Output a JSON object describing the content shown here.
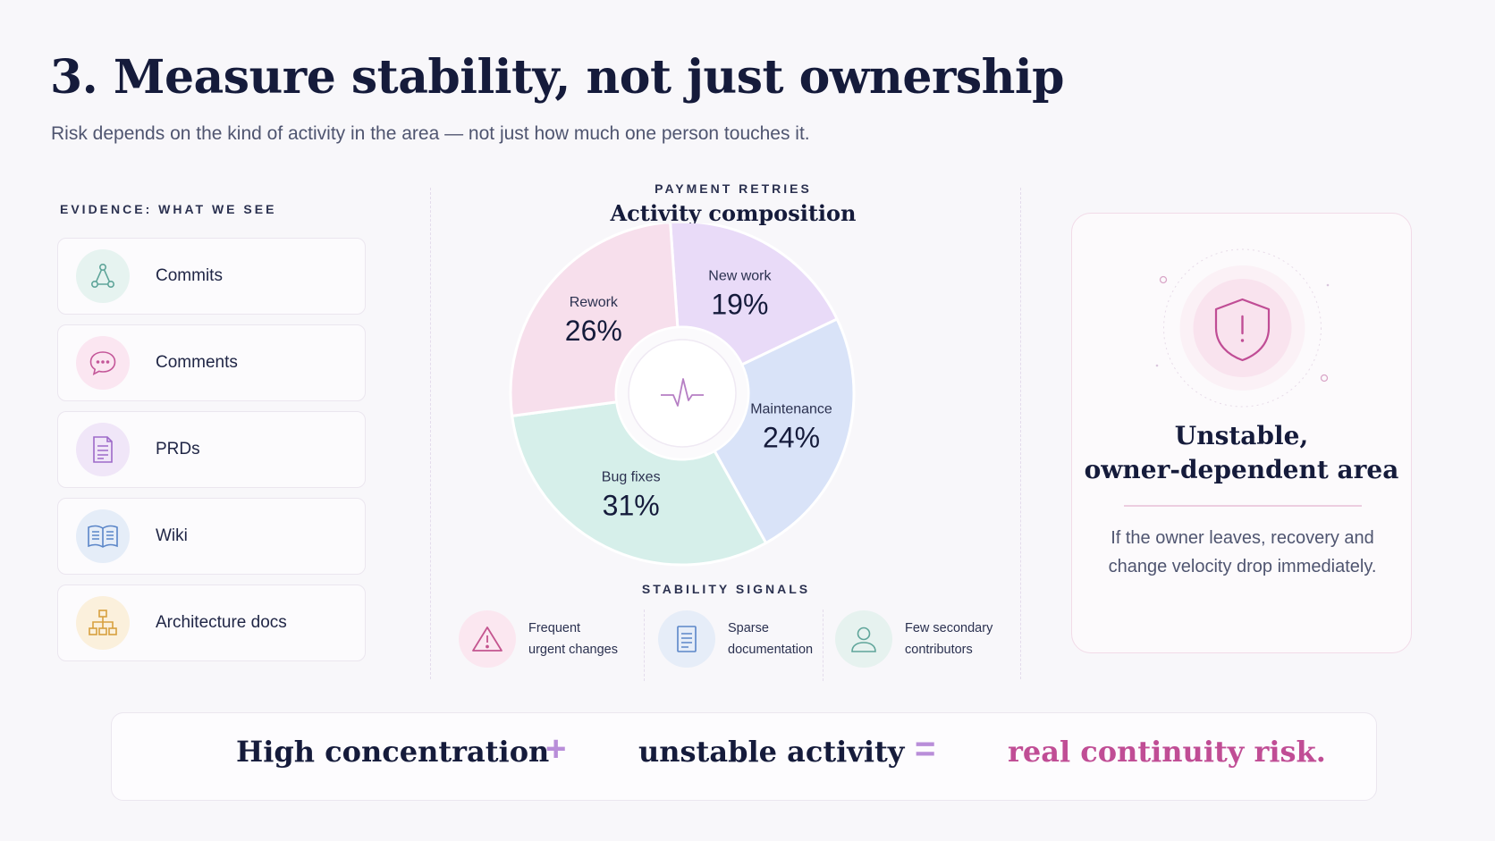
{
  "header": {
    "title": "3. Measure stability, not just ownership",
    "subtitle": "Risk depends on the kind of activity in the area — not just how much one person touches it."
  },
  "evidence": {
    "heading": "EVIDENCE: WHAT WE SEE",
    "items": [
      {
        "label": "Commits",
        "icon": "commit-graph-icon",
        "color": "#5fa59a",
        "bg": "#e6f3f0"
      },
      {
        "label": "Comments",
        "icon": "comment-bubble-icon",
        "color": "#c45799",
        "bg": "#fbe6f1"
      },
      {
        "label": "PRDs",
        "icon": "document-icon",
        "color": "#9d6ac9",
        "bg": "#f0e6f8"
      },
      {
        "label": "Wiki",
        "icon": "open-book-icon",
        "color": "#5b86c8",
        "bg": "#e5edf8"
      },
      {
        "label": "Architecture docs",
        "icon": "hierarchy-icon",
        "color": "#d8a03e",
        "bg": "#fbf0dc"
      }
    ]
  },
  "chart_section": {
    "eyebrow": "PAYMENT RETRIES",
    "title": "Activity composition",
    "center_icon": "pulse-icon"
  },
  "chart_data": {
    "type": "pie",
    "title": "Activity composition",
    "donut": true,
    "slices": [
      {
        "label": "New work",
        "value": 19,
        "display": "19%",
        "color": "#e9dbf8"
      },
      {
        "label": "Maintenance",
        "value": 24,
        "display": "24%",
        "color": "#d9e3f8"
      },
      {
        "label": "Bug fixes",
        "value": 31,
        "display": "31%",
        "color": "#d6efea"
      },
      {
        "label": "Rework",
        "value": 26,
        "display": "26%",
        "color": "#f7dfec"
      }
    ]
  },
  "stability": {
    "heading": "STABILITY SIGNALS",
    "signals": [
      {
        "line1": "Frequent",
        "line2": "urgent changes",
        "icon": "warning-triangle-icon",
        "color": "#c4558f",
        "bg": "#fbe7f0"
      },
      {
        "line1": "Sparse",
        "line2": "documentation",
        "icon": "document-icon",
        "color": "#5b86c8",
        "bg": "#e6edf8"
      },
      {
        "line1": "Few secondary",
        "line2": "contributors",
        "icon": "person-icon",
        "color": "#5fa59a",
        "bg": "#e6f2ef"
      }
    ]
  },
  "verdict": {
    "icon": "shield-alert-icon",
    "title_line1": "Unstable,",
    "title_line2": "owner-dependent area",
    "text": "If the owner leaves, recovery and change velocity drop immediately."
  },
  "equation": {
    "left": "High concentration",
    "plus": "+",
    "middle": "unstable activity",
    "equals": "=",
    "result": "real continuity risk."
  },
  "colors": {
    "title": "#151b3b",
    "accent_pink": "#c04d95",
    "accent_purple": "#b98ed9"
  }
}
